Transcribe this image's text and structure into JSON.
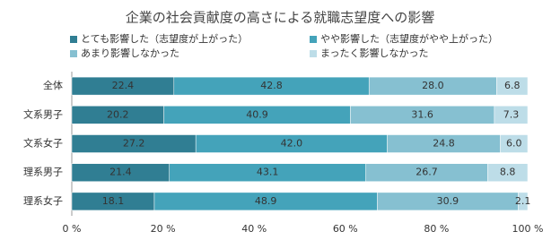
{
  "chart_data": {
    "type": "stacked-bar-horizontal",
    "title": "企業の社会貢献度の高さによる就職志望度への影響",
    "categories": [
      "全体",
      "文系男子",
      "文系女子",
      "理系男子",
      "理系女子"
    ],
    "series": [
      {
        "name": "とても影響した（志望度が上がった）",
        "color": "#307e93",
        "values": [
          22.4,
          20.2,
          27.2,
          21.4,
          18.1
        ],
        "value_labels": [
          "22.4",
          "20.2",
          "27.2",
          "21.4",
          "18.1"
        ]
      },
      {
        "name": "やや影響した（志望度がやや上がった）",
        "color": "#44a3ba",
        "values": [
          42.8,
          40.9,
          42.0,
          43.1,
          48.9
        ],
        "value_labels": [
          "42.8",
          "40.9",
          "42.0",
          "43.1",
          "48.9"
        ]
      },
      {
        "name": "あまり影響しなかった",
        "color": "#86c0d1",
        "values": [
          28.0,
          31.6,
          24.8,
          26.7,
          30.9
        ],
        "value_labels": [
          "28.0",
          "31.6",
          "24.8",
          "26.7",
          "30.9"
        ]
      },
      {
        "name": "まったく影響しなかった",
        "color": "#bddde8",
        "values": [
          6.8,
          7.3,
          6.0,
          8.8,
          2.1
        ],
        "value_labels": [
          "6.8",
          "7.3",
          "6.0",
          "8.8",
          "2.1"
        ]
      }
    ],
    "xlim": [
      0,
      100
    ],
    "xticks": [
      {
        "value": 0,
        "label": "0 %"
      },
      {
        "value": 20,
        "label": "20 %"
      },
      {
        "value": 40,
        "label": "40 %"
      },
      {
        "value": 60,
        "label": "60 %"
      },
      {
        "value": 80,
        "label": "80 %"
      },
      {
        "value": 100,
        "label": "100 %"
      }
    ]
  }
}
